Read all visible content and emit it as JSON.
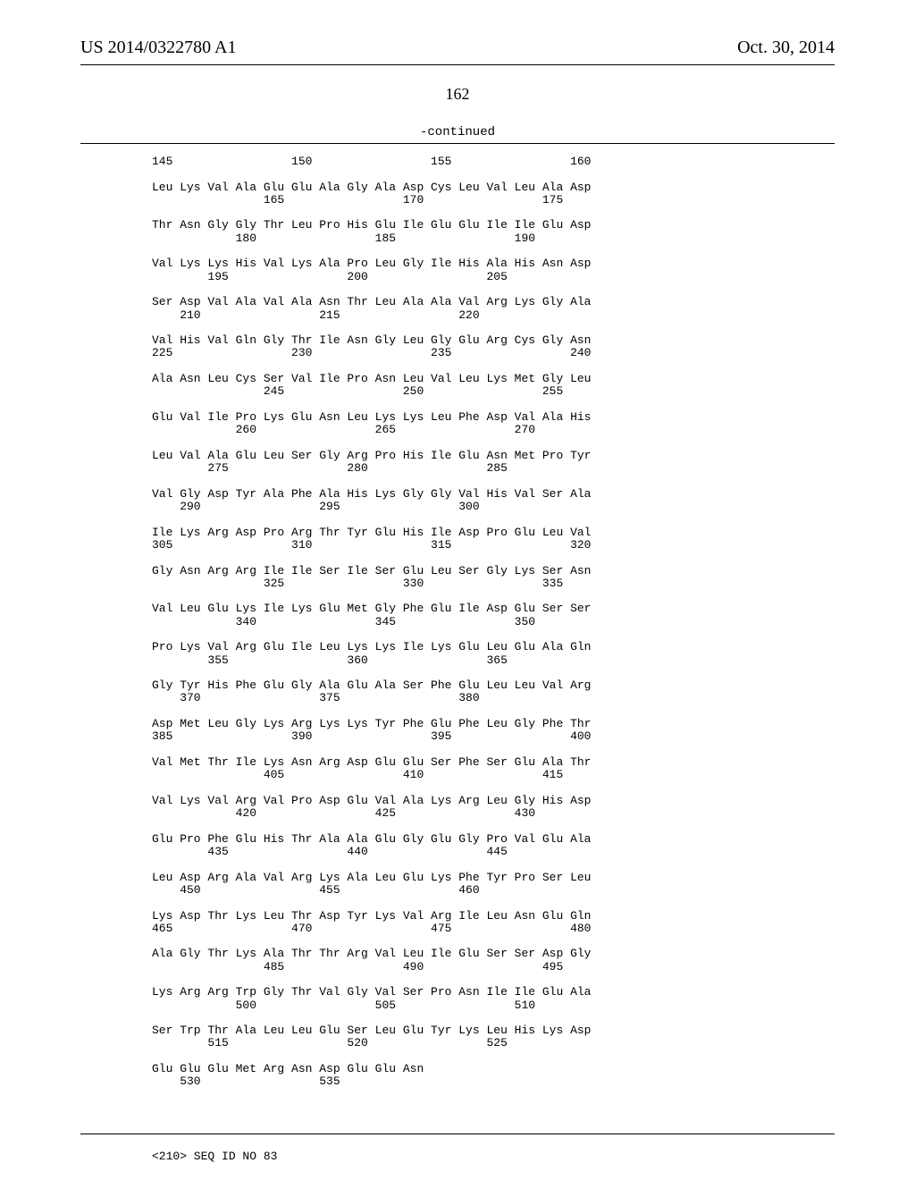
{
  "header": {
    "left": "US 2014/0322780 A1",
    "right": "Oct. 30, 2014"
  },
  "page_number": "162",
  "continued_label": "-continued",
  "footer_seq": "<210> SEQ ID NO 83",
  "sequence_text": "145                 150                 155                 160\n\nLeu Lys Val Ala Glu Glu Ala Gly Ala Asp Cys Leu Val Leu Ala Asp\n                165                 170                 175\n\nThr Asn Gly Gly Thr Leu Pro His Glu Ile Glu Glu Ile Ile Glu Asp\n            180                 185                 190\n\nVal Lys Lys His Val Lys Ala Pro Leu Gly Ile His Ala His Asn Asp\n        195                 200                 205\n\nSer Asp Val Ala Val Ala Asn Thr Leu Ala Ala Val Arg Lys Gly Ala\n    210                 215                 220\n\nVal His Val Gln Gly Thr Ile Asn Gly Leu Gly Glu Arg Cys Gly Asn\n225                 230                 235                 240\n\nAla Asn Leu Cys Ser Val Ile Pro Asn Leu Val Leu Lys Met Gly Leu\n                245                 250                 255\n\nGlu Val Ile Pro Lys Glu Asn Leu Lys Lys Leu Phe Asp Val Ala His\n            260                 265                 270\n\nLeu Val Ala Glu Leu Ser Gly Arg Pro His Ile Glu Asn Met Pro Tyr\n        275                 280                 285\n\nVal Gly Asp Tyr Ala Phe Ala His Lys Gly Gly Val His Val Ser Ala\n    290                 295                 300\n\nIle Lys Arg Asp Pro Arg Thr Tyr Glu His Ile Asp Pro Glu Leu Val\n305                 310                 315                 320\n\nGly Asn Arg Arg Ile Ile Ser Ile Ser Glu Leu Ser Gly Lys Ser Asn\n                325                 330                 335\n\nVal Leu Glu Lys Ile Lys Glu Met Gly Phe Glu Ile Asp Glu Ser Ser\n            340                 345                 350\n\nPro Lys Val Arg Glu Ile Leu Lys Lys Ile Lys Glu Leu Glu Ala Gln\n        355                 360                 365\n\nGly Tyr His Phe Glu Gly Ala Glu Ala Ser Phe Glu Leu Leu Val Arg\n    370                 375                 380\n\nAsp Met Leu Gly Lys Arg Lys Lys Tyr Phe Glu Phe Leu Gly Phe Thr\n385                 390                 395                 400\n\nVal Met Thr Ile Lys Asn Arg Asp Glu Glu Ser Phe Ser Glu Ala Thr\n                405                 410                 415\n\nVal Lys Val Arg Val Pro Asp Glu Val Ala Lys Arg Leu Gly His Asp\n            420                 425                 430\n\nGlu Pro Phe Glu His Thr Ala Ala Glu Gly Glu Gly Pro Val Glu Ala\n        435                 440                 445\n\nLeu Asp Arg Ala Val Arg Lys Ala Leu Glu Lys Phe Tyr Pro Ser Leu\n    450                 455                 460\n\nLys Asp Thr Lys Leu Thr Asp Tyr Lys Val Arg Ile Leu Asn Glu Gln\n465                 470                 475                 480\n\nAla Gly Thr Lys Ala Thr Thr Arg Val Leu Ile Glu Ser Ser Asp Gly\n                485                 490                 495\n\nLys Arg Arg Trp Gly Thr Val Gly Val Ser Pro Asn Ile Ile Glu Ala\n            500                 505                 510\n\nSer Trp Thr Ala Leu Leu Glu Ser Leu Glu Tyr Lys Leu His Lys Asp\n        515                 520                 525\n\nGlu Glu Glu Met Arg Asn Asp Glu Glu Asn\n    530                 535"
}
